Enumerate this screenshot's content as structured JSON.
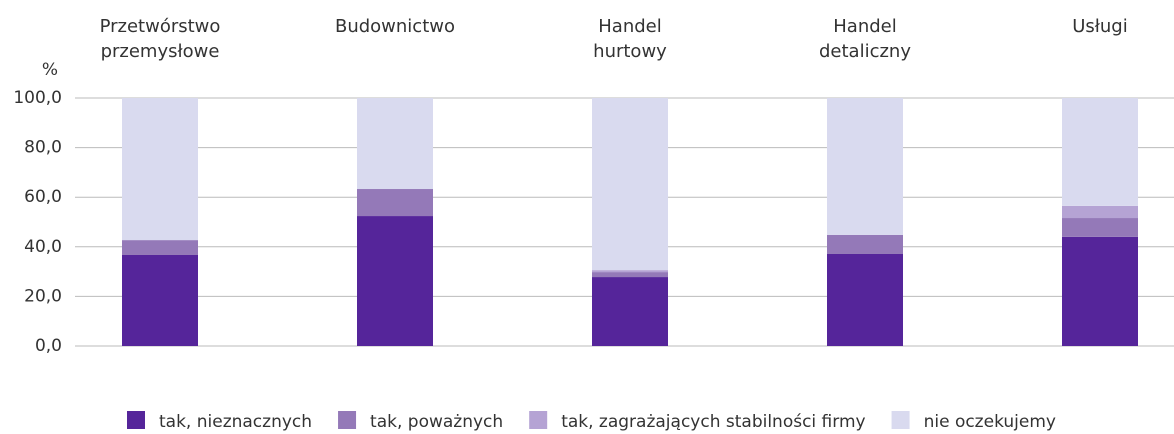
{
  "chart_data": {
    "type": "stacked_bar",
    "y_label": "%",
    "categories": [
      "Przetwórstwo\nprzemysłowe",
      "Budownictwo",
      "Handel\nhurtowy",
      "Handel\ndetaliczny",
      "Usługi"
    ],
    "series": [
      {
        "name": "tak, nieznacznych",
        "color": "#55259a",
        "values": [
          36.7,
          52.4,
          27.8,
          37.1,
          44.0
        ]
      },
      {
        "name": "tak, poważnych",
        "color": "#9479b8",
        "values": [
          6.0,
          10.9,
          2.0,
          7.7,
          7.6
        ]
      },
      {
        "name": "tak, zagrażających stabilności firmy",
        "color": "#b5a3d4",
        "values": [
          0,
          0,
          0.8,
          0,
          4.9
        ]
      },
      {
        "name": "nie oczekujemy",
        "color": "#d9daef",
        "values": [
          57.3,
          36.7,
          69.4,
          55.2,
          43.5
        ]
      }
    ],
    "ylim": [
      0,
      100
    ],
    "yticks": [
      {
        "value": 0,
        "label": "0,0"
      },
      {
        "value": 20,
        "label": "20,0"
      },
      {
        "value": 40,
        "label": "40,0"
      },
      {
        "value": 60,
        "label": "60,0"
      },
      {
        "value": 80,
        "label": "80,0"
      },
      {
        "value": 100,
        "label": "100,0"
      }
    ],
    "grid": true
  }
}
